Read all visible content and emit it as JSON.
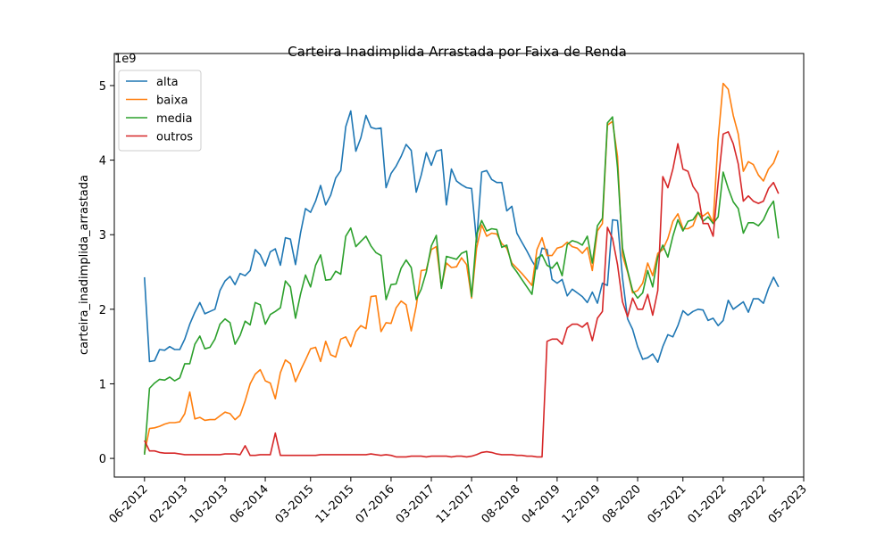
{
  "chart_data": {
    "type": "line",
    "title": "Carteira Inadimplida Arrastada por Faixa de Renda",
    "y_label": "carteira_inadimplida_arrastada",
    "y_offset_label": "1e9",
    "legend": "upper left",
    "grid": false,
    "xlim": [
      "12-2011",
      "05-2023"
    ],
    "xticks": [
      "06-2012",
      "02-2013",
      "10-2013",
      "06-2014",
      "03-2015",
      "11-2015",
      "07-2016",
      "03-2017",
      "11-2017",
      "08-2018",
      "04-2019",
      "12-2019",
      "08-2020",
      "05-2021",
      "01-2022",
      "09-2022",
      "05-2023"
    ],
    "ylim": [
      -0.25,
      5.43
    ],
    "yticks": [
      0,
      1,
      2,
      3,
      4,
      5
    ],
    "x": [
      "06-2012",
      "07-2012",
      "08-2012",
      "09-2012",
      "10-2012",
      "11-2012",
      "12-2012",
      "01-2013",
      "02-2013",
      "03-2013",
      "04-2013",
      "05-2013",
      "06-2013",
      "07-2013",
      "08-2013",
      "09-2013",
      "10-2013",
      "11-2013",
      "12-2013",
      "01-2014",
      "02-2014",
      "03-2014",
      "04-2014",
      "05-2014",
      "06-2014",
      "07-2014",
      "08-2014",
      "09-2014",
      "10-2014",
      "11-2014",
      "12-2014",
      "01-2015",
      "02-2015",
      "03-2015",
      "04-2015",
      "05-2015",
      "06-2015",
      "07-2015",
      "08-2015",
      "09-2015",
      "10-2015",
      "11-2015",
      "12-2015",
      "01-2016",
      "02-2016",
      "03-2016",
      "04-2016",
      "05-2016",
      "06-2016",
      "07-2016",
      "08-2016",
      "09-2016",
      "10-2016",
      "11-2016",
      "12-2016",
      "01-2017",
      "02-2017",
      "03-2017",
      "04-2017",
      "05-2017",
      "06-2017",
      "07-2017",
      "08-2017",
      "09-2017",
      "10-2017",
      "11-2017",
      "12-2017",
      "01-2018",
      "02-2018",
      "03-2018",
      "04-2018",
      "05-2018",
      "06-2018",
      "07-2018",
      "08-2018",
      "09-2018",
      "10-2018",
      "11-2018",
      "12-2018",
      "01-2019",
      "02-2019",
      "03-2019",
      "04-2019",
      "05-2019",
      "06-2019",
      "07-2019",
      "08-2019",
      "09-2019",
      "10-2019",
      "11-2019",
      "12-2019",
      "01-2020",
      "02-2020",
      "03-2020",
      "04-2020",
      "05-2020",
      "06-2020",
      "07-2020",
      "08-2020",
      "09-2020",
      "10-2020",
      "11-2020",
      "12-2020",
      "01-2021",
      "02-2021",
      "03-2021",
      "04-2021",
      "05-2021",
      "06-2021",
      "07-2021",
      "08-2021",
      "09-2021",
      "10-2021",
      "11-2021",
      "12-2021",
      "01-2022",
      "02-2022",
      "03-2022",
      "04-2022",
      "05-2022",
      "06-2022",
      "07-2022",
      "08-2022",
      "09-2022",
      "10-2022",
      "11-2022",
      "12-2022"
    ],
    "series": [
      {
        "name": "alta",
        "color": "#1f77b4",
        "values": [
          2.43,
          1.3,
          1.31,
          1.46,
          1.45,
          1.5,
          1.46,
          1.46,
          1.6,
          1.8,
          1.96,
          2.09,
          1.94,
          1.97,
          2.0,
          2.25,
          2.38,
          2.44,
          2.33,
          2.48,
          2.45,
          2.52,
          2.8,
          2.73,
          2.58,
          2.77,
          2.81,
          2.59,
          2.96,
          2.94,
          2.6,
          3.02,
          3.35,
          3.3,
          3.45,
          3.66,
          3.4,
          3.53,
          3.76,
          3.86,
          4.45,
          4.66,
          4.12,
          4.3,
          4.6,
          4.44,
          4.42,
          4.43,
          3.63,
          3.82,
          3.92,
          4.05,
          4.21,
          4.13,
          3.57,
          3.8,
          4.1,
          3.93,
          4.12,
          4.14,
          3.4,
          3.88,
          3.72,
          3.67,
          3.63,
          3.62,
          2.9,
          3.84,
          3.86,
          3.74,
          3.7,
          3.7,
          3.32,
          3.38,
          3.02,
          2.9,
          2.78,
          2.65,
          2.54,
          2.82,
          2.8,
          2.4,
          2.35,
          2.4,
          2.18,
          2.27,
          2.22,
          2.17,
          2.09,
          2.23,
          2.08,
          2.35,
          2.32,
          3.2,
          3.19,
          2.42,
          1.87,
          1.73,
          1.5,
          1.33,
          1.35,
          1.4,
          1.29,
          1.5,
          1.66,
          1.63,
          1.78,
          1.98,
          1.92,
          1.97,
          2.0,
          1.99,
          1.85,
          1.88,
          1.78,
          1.85,
          2.12,
          2.0,
          2.05,
          2.1,
          1.96,
          2.14,
          2.14,
          2.08,
          2.28,
          2.43,
          2.3
        ]
      },
      {
        "name": "baixa",
        "color": "#ff7f0e",
        "values": [
          0.07,
          0.4,
          0.41,
          0.43,
          0.46,
          0.48,
          0.48,
          0.49,
          0.6,
          0.89,
          0.53,
          0.55,
          0.51,
          0.52,
          0.52,
          0.57,
          0.62,
          0.6,
          0.52,
          0.58,
          0.77,
          1.0,
          1.13,
          1.19,
          1.04,
          1.01,
          0.8,
          1.15,
          1.32,
          1.27,
          1.03,
          1.18,
          1.32,
          1.47,
          1.49,
          1.3,
          1.57,
          1.39,
          1.36,
          1.6,
          1.63,
          1.5,
          1.7,
          1.78,
          1.74,
          2.17,
          2.18,
          1.7,
          1.82,
          1.81,
          2.02,
          2.11,
          2.06,
          1.71,
          2.04,
          2.52,
          2.53,
          2.8,
          2.84,
          2.3,
          2.62,
          2.56,
          2.57,
          2.69,
          2.6,
          2.15,
          2.82,
          3.13,
          2.98,
          3.02,
          3.01,
          2.88,
          2.82,
          2.62,
          2.55,
          2.48,
          2.4,
          2.32,
          2.8,
          2.96,
          2.72,
          2.72,
          2.82,
          2.84,
          2.9,
          2.84,
          2.82,
          2.75,
          2.83,
          2.52,
          3.05,
          3.15,
          4.47,
          4.52,
          4.05,
          2.72,
          2.5,
          2.22,
          2.25,
          2.35,
          2.62,
          2.45,
          2.75,
          2.8,
          2.95,
          3.18,
          3.28,
          3.08,
          3.08,
          3.12,
          3.3,
          3.25,
          3.3,
          3.16,
          4.28,
          5.03,
          4.95,
          4.6,
          4.35,
          3.85,
          3.98,
          3.94,
          3.8,
          3.72,
          3.88,
          3.96,
          4.13
        ]
      },
      {
        "name": "media",
        "color": "#2ca02c",
        "values": [
          0.05,
          0.94,
          1.01,
          1.06,
          1.05,
          1.09,
          1.04,
          1.08,
          1.27,
          1.27,
          1.53,
          1.64,
          1.47,
          1.49,
          1.6,
          1.8,
          1.87,
          1.82,
          1.53,
          1.65,
          1.84,
          1.79,
          2.09,
          2.06,
          1.8,
          1.93,
          1.97,
          2.02,
          2.38,
          2.3,
          1.88,
          2.2,
          2.46,
          2.3,
          2.59,
          2.73,
          2.39,
          2.4,
          2.51,
          2.47,
          2.98,
          3.09,
          2.84,
          2.91,
          2.98,
          2.85,
          2.76,
          2.72,
          2.13,
          2.33,
          2.34,
          2.55,
          2.66,
          2.56,
          2.13,
          2.27,
          2.5,
          2.85,
          2.99,
          2.28,
          2.71,
          2.69,
          2.67,
          2.75,
          2.78,
          2.17,
          3.0,
          3.19,
          3.05,
          3.08,
          3.07,
          2.83,
          2.86,
          2.59,
          2.5,
          2.4,
          2.3,
          2.2,
          2.68,
          2.73,
          2.59,
          2.55,
          2.63,
          2.45,
          2.87,
          2.92,
          2.9,
          2.86,
          2.98,
          2.62,
          3.12,
          3.22,
          4.5,
          4.58,
          3.9,
          2.82,
          2.52,
          2.25,
          2.15,
          2.22,
          2.52,
          2.3,
          2.7,
          2.86,
          2.7,
          2.98,
          3.2,
          3.05,
          3.18,
          3.2,
          3.3,
          3.18,
          3.24,
          3.15,
          3.24,
          3.84,
          3.62,
          3.44,
          3.35,
          3.02,
          3.16,
          3.16,
          3.12,
          3.2,
          3.35,
          3.45,
          2.95
        ]
      },
      {
        "name": "outros",
        "color": "#d62728",
        "values": [
          0.24,
          0.1,
          0.1,
          0.08,
          0.07,
          0.07,
          0.07,
          0.06,
          0.05,
          0.05,
          0.05,
          0.05,
          0.05,
          0.05,
          0.05,
          0.05,
          0.06,
          0.06,
          0.06,
          0.05,
          0.17,
          0.04,
          0.04,
          0.05,
          0.05,
          0.05,
          0.34,
          0.04,
          0.04,
          0.04,
          0.04,
          0.04,
          0.04,
          0.04,
          0.04,
          0.05,
          0.05,
          0.05,
          0.05,
          0.05,
          0.05,
          0.05,
          0.05,
          0.05,
          0.05,
          0.06,
          0.05,
          0.04,
          0.05,
          0.04,
          0.02,
          0.02,
          0.02,
          0.03,
          0.03,
          0.03,
          0.02,
          0.03,
          0.03,
          0.03,
          0.03,
          0.02,
          0.03,
          0.03,
          0.02,
          0.03,
          0.05,
          0.08,
          0.09,
          0.08,
          0.06,
          0.05,
          0.05,
          0.05,
          0.04,
          0.04,
          0.03,
          0.03,
          0.02,
          0.02,
          1.57,
          1.6,
          1.6,
          1.53,
          1.75,
          1.8,
          1.8,
          1.76,
          1.82,
          1.58,
          1.88,
          1.97,
          3.1,
          2.95,
          2.6,
          2.1,
          1.9,
          2.15,
          2.0,
          2.0,
          2.2,
          1.92,
          2.25,
          3.78,
          3.63,
          3.88,
          4.22,
          3.88,
          3.85,
          3.65,
          3.55,
          3.15,
          3.15,
          2.98,
          3.7,
          4.35,
          4.38,
          4.22,
          3.95,
          3.45,
          3.52,
          3.45,
          3.42,
          3.45,
          3.62,
          3.7,
          3.55
        ]
      }
    ]
  }
}
